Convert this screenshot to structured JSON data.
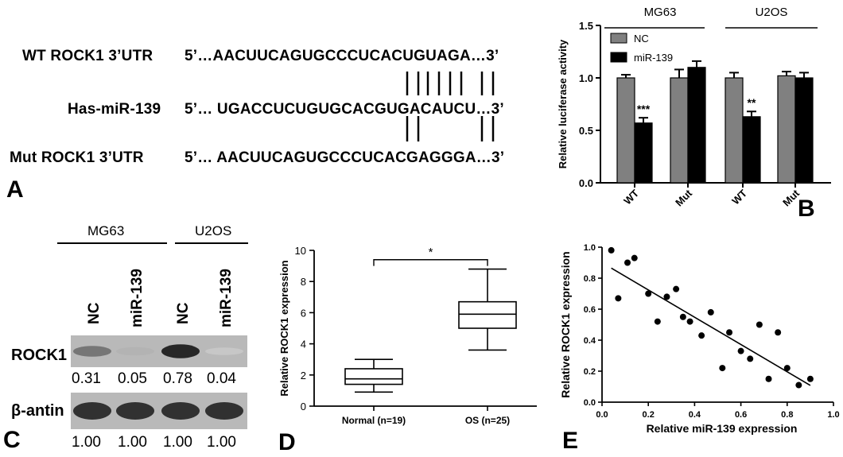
{
  "panel_a": {
    "letter": "A",
    "rows": [
      {
        "label": "WT ROCK1 3’UTR",
        "sequence": "5’…AACUUCAGUGCCCUCACUGUAGA…3’"
      },
      {
        "label": "Has-miR-139",
        "sequence": "5’… UGACCUCUGUGCACGUGACAUCU…3’"
      },
      {
        "label": "Mut  ROCK1 3’UTR",
        "sequence": "5’… AACUUCAGUGCCCUCACGAGGGA…3’"
      }
    ],
    "pairing_top": "| | | |  | |  | | | |",
    "pairing_bottom": "| |           | |"
  },
  "panel_b": {
    "letter": "B",
    "chart_data": {
      "type": "bar",
      "ylabel": "Relative luciferase activity",
      "ylim": [
        0,
        1.5
      ],
      "yticks": [
        "0.0",
        "0.5",
        "1.0",
        "1.5"
      ],
      "groups": [
        "MG63",
        "U2OS"
      ],
      "categories": [
        "WT",
        "Mut",
        "WT",
        "Mut"
      ],
      "series": [
        {
          "name": "NC",
          "color": "#808080",
          "values": [
            1.0,
            1.0,
            1.0,
            1.02
          ],
          "errors": [
            0.03,
            0.08,
            0.05,
            0.04
          ]
        },
        {
          "name": "miR-139",
          "color": "#000000",
          "values": [
            0.57,
            1.1,
            0.63,
            1.0
          ],
          "errors": [
            0.05,
            0.06,
            0.05,
            0.05
          ]
        }
      ],
      "annotations": [
        "***",
        "",
        "**",
        ""
      ],
      "legend": "top-left"
    }
  },
  "panel_c": {
    "letter": "C",
    "groups": [
      "MG63",
      "U2OS"
    ],
    "lanes": [
      "NC",
      "miR-139",
      "NC",
      "miR-139"
    ],
    "rows": [
      {
        "label": "ROCK1",
        "values": [
          "0.31",
          "0.05",
          "0.78",
          "0.04"
        ],
        "intensity": [
          0.55,
          0.25,
          0.95,
          0.15
        ]
      },
      {
        "label": "β-antin",
        "values": [
          "1.00",
          "1.00",
          "1.00",
          "1.00"
        ],
        "intensity": [
          0.9,
          0.9,
          0.9,
          0.9
        ]
      }
    ]
  },
  "panel_d": {
    "letter": "D",
    "chart_data": {
      "type": "box",
      "ylabel": "Relative ROCK1 expression",
      "ylim": [
        0,
        10
      ],
      "yticks": [
        "0",
        "2",
        "4",
        "6",
        "8",
        "10"
      ],
      "categories": [
        "Normal (n=19)",
        "OS (n=25)"
      ],
      "boxes": [
        {
          "min": 0.9,
          "q1": 1.4,
          "median": 1.75,
          "q3": 2.4,
          "max": 3.0
        },
        {
          "min": 3.6,
          "q1": 5.0,
          "median": 5.9,
          "q3": 6.7,
          "max": 8.8
        }
      ],
      "significance": "*"
    }
  },
  "panel_e": {
    "letter": "E",
    "chart_data": {
      "type": "scatter",
      "xlabel": "Relative miR-139 expression",
      "ylabel": "Relative ROCK1 expression",
      "xlim": [
        0,
        1.0
      ],
      "ylim": [
        0,
        1.0
      ],
      "xticks": [
        "0.0",
        "0.2",
        "0.4",
        "0.6",
        "0.8",
        "1.0"
      ],
      "yticks": [
        "0.0",
        "0.2",
        "0.4",
        "0.6",
        "0.8",
        "1.0"
      ],
      "points": [
        [
          0.04,
          0.98
        ],
        [
          0.07,
          0.67
        ],
        [
          0.11,
          0.9
        ],
        [
          0.14,
          0.93
        ],
        [
          0.2,
          0.7
        ],
        [
          0.24,
          0.52
        ],
        [
          0.28,
          0.68
        ],
        [
          0.32,
          0.73
        ],
        [
          0.35,
          0.55
        ],
        [
          0.38,
          0.52
        ],
        [
          0.43,
          0.43
        ],
        [
          0.47,
          0.58
        ],
        [
          0.52,
          0.22
        ],
        [
          0.55,
          0.45
        ],
        [
          0.6,
          0.33
        ],
        [
          0.64,
          0.28
        ],
        [
          0.68,
          0.5
        ],
        [
          0.72,
          0.15
        ],
        [
          0.76,
          0.45
        ],
        [
          0.8,
          0.22
        ],
        [
          0.85,
          0.11
        ],
        [
          0.9,
          0.15
        ]
      ],
      "fit": {
        "slope": -0.88,
        "intercept": 0.9
      }
    }
  }
}
